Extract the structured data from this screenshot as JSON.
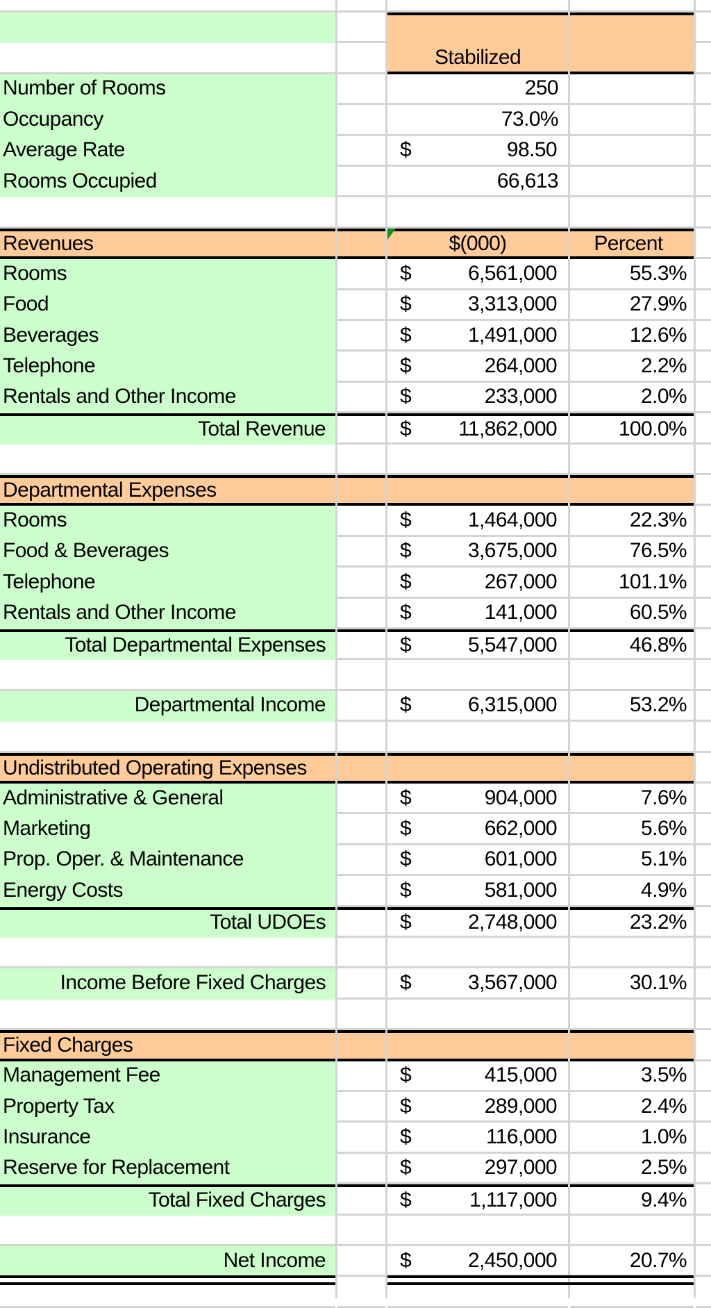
{
  "colors": {
    "label_fill": "#ccffcc",
    "header_fill": "#ffcc99",
    "gridline": "#d4d4d4"
  },
  "column_header": "Stabilized",
  "stats": [
    {
      "label": "Number of Rooms",
      "value": "250",
      "dollar": ""
    },
    {
      "label": "Occupancy",
      "value": "73.0%",
      "dollar": ""
    },
    {
      "label": "Average Rate",
      "value": "98.50",
      "dollar": "$"
    },
    {
      "label": "Rooms Occupied",
      "value": "66,613",
      "dollar": ""
    }
  ],
  "sections": [
    {
      "title": "Revenues",
      "amount_header": "$(000)",
      "percent_header": "Percent",
      "items": [
        {
          "label": "Rooms",
          "amount": "6,561,000",
          "percent": "55.3%"
        },
        {
          "label": "Food",
          "amount": "3,313,000",
          "percent": "27.9%"
        },
        {
          "label": "Beverages",
          "amount": "1,491,000",
          "percent": "12.6%"
        },
        {
          "label": "Telephone",
          "amount": "264,000",
          "percent": "2.2%"
        },
        {
          "label": "Rentals and Other Income",
          "amount": "233,000",
          "percent": "2.0%"
        }
      ],
      "total": {
        "label": "Total Revenue",
        "amount": "11,862,000",
        "percent": "100.0%"
      },
      "result": null
    },
    {
      "title": "Departmental Expenses",
      "amount_header": "",
      "percent_header": "",
      "items": [
        {
          "label": "Rooms",
          "amount": "1,464,000",
          "percent": "22.3%"
        },
        {
          "label": "Food & Beverages",
          "amount": "3,675,000",
          "percent": "76.5%"
        },
        {
          "label": "Telephone",
          "amount": "267,000",
          "percent": "101.1%"
        },
        {
          "label": "Rentals and Other Income",
          "amount": "141,000",
          "percent": "60.5%"
        }
      ],
      "total": {
        "label": "Total Departmental Expenses",
        "amount": "5,547,000",
        "percent": "46.8%"
      },
      "result": {
        "label": "Departmental Income",
        "amount": "6,315,000",
        "percent": "53.2%"
      }
    },
    {
      "title": "Undistributed Operating Expenses",
      "amount_header": "",
      "percent_header": "",
      "items": [
        {
          "label": "Administrative & General",
          "amount": "904,000",
          "percent": "7.6%"
        },
        {
          "label": "Marketing",
          "amount": "662,000",
          "percent": "5.6%"
        },
        {
          "label": "Prop. Oper. & Maintenance",
          "amount": "601,000",
          "percent": "5.1%"
        },
        {
          "label": "Energy Costs",
          "amount": "581,000",
          "percent": "4.9%"
        }
      ],
      "total": {
        "label": "Total UDOEs",
        "amount": "2,748,000",
        "percent": "23.2%"
      },
      "result": {
        "label": "Income Before Fixed Charges",
        "amount": "3,567,000",
        "percent": "30.1%"
      }
    },
    {
      "title": "Fixed Charges",
      "amount_header": "",
      "percent_header": "",
      "items": [
        {
          "label": "Management Fee",
          "amount": "415,000",
          "percent": "3.5%"
        },
        {
          "label": "Property Tax",
          "amount": "289,000",
          "percent": "2.4%"
        },
        {
          "label": "Insurance",
          "amount": "116,000",
          "percent": "1.0%"
        },
        {
          "label": "Reserve for Replacement",
          "amount": "297,000",
          "percent": "2.5%"
        }
      ],
      "total": {
        "label": "Total Fixed Charges",
        "amount": "1,117,000",
        "percent": "9.4%"
      },
      "result": {
        "label": "Net Income",
        "amount": "2,450,000",
        "percent": "20.7%"
      }
    }
  ],
  "currency_symbol": "$"
}
